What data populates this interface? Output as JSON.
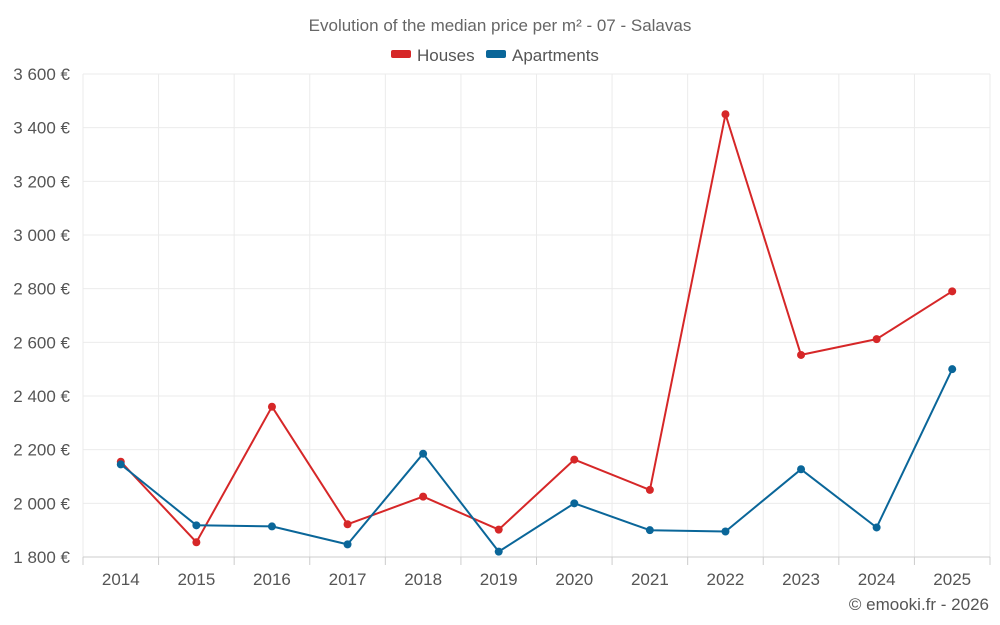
{
  "chart_data": {
    "type": "line",
    "title": "Evolution of the median price per m² - 07 - Salavas",
    "categories": [
      "2014",
      "2015",
      "2016",
      "2017",
      "2018",
      "2019",
      "2020",
      "2021",
      "2022",
      "2023",
      "2024",
      "2025"
    ],
    "series": [
      {
        "name": "Houses",
        "color": "#d62728",
        "values": [
          2155,
          1855,
          2360,
          1922,
          2025,
          1902,
          2163,
          2050,
          3450,
          2553,
          2612,
          2790
        ]
      },
      {
        "name": "Apartments",
        "color": "#0a6699",
        "values": [
          2145,
          1918,
          1914,
          1847,
          2185,
          1820,
          2000,
          1900,
          1895,
          2127,
          1910,
          2500
        ]
      }
    ],
    "ylim": [
      1800,
      3600
    ],
    "yticks": [
      1800,
      2000,
      2200,
      2400,
      2600,
      2800,
      3000,
      3200,
      3400,
      3600
    ],
    "ytick_labels": [
      "1 800 €",
      "2 000 €",
      "2 200 €",
      "2 400 €",
      "2 600 €",
      "2 800 €",
      "3 000 €",
      "3 200 €",
      "3 400 €",
      "3 600 €"
    ],
    "xlabel": "",
    "ylabel": "",
    "grid": true,
    "legend_position": "top-center"
  },
  "credit": "© emooki.fr - 2026"
}
